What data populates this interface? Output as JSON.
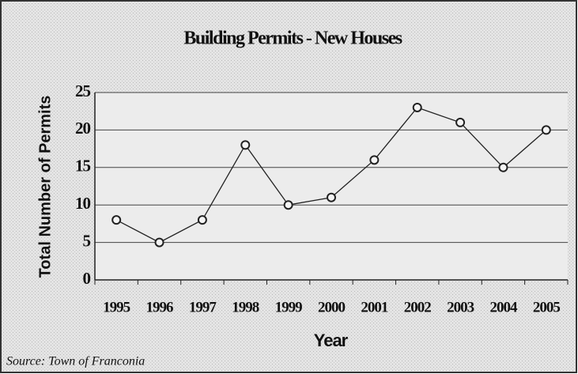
{
  "chart_data": {
    "type": "line",
    "title": "Building Permits - New Houses",
    "x_label": "Year",
    "y_label": "Total Number of Permits",
    "source": "Source:  Town of Franconia",
    "categories": [
      "1995",
      "1996",
      "1997",
      "1998",
      "1999",
      "2000",
      "2001",
      "2002",
      "2003",
      "2004",
      "2005"
    ],
    "values": [
      8,
      5,
      8,
      18,
      10,
      11,
      16,
      23,
      21,
      15,
      20
    ],
    "color": "#222222",
    "ylim": [
      0,
      25
    ],
    "yticks": [
      0,
      5,
      10,
      15,
      20,
      25
    ],
    "grid": true
  }
}
